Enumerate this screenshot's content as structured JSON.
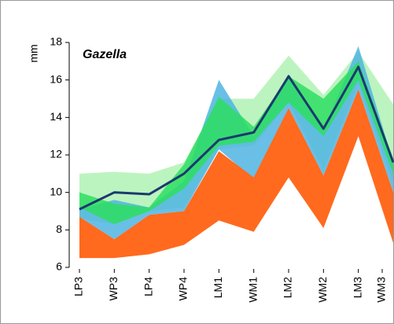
{
  "chart_data": {
    "type": "range-line",
    "title": "Gazella",
    "y_label": "mm",
    "categories": [
      "LP3",
      "WP3",
      "LP4",
      "WP4",
      "LM1",
      "WM1",
      "LM2",
      "WM2",
      "LM3",
      "WM3"
    ],
    "ylim": [
      6,
      18
    ],
    "yticks": [
      6,
      8,
      10,
      12,
      14,
      16,
      18
    ],
    "series": [
      {
        "color": "#b0f2b4",
        "high": [
          11.0,
          11.1,
          11.0,
          11.6,
          15.0,
          15.0,
          17.3,
          15.2,
          17.5,
          14.7
        ],
        "low": [
          8.6,
          8.3,
          9.0,
          9.2,
          12.3,
          12.5,
          14.8,
          11.2,
          15.8,
          10.5
        ]
      },
      {
        "color": "#4fb4e2",
        "high": [
          9.1,
          9.6,
          9.2,
          10.6,
          16.0,
          13.0,
          16.3,
          13.3,
          17.8,
          11.6
        ],
        "low": [
          8.7,
          7.5,
          8.8,
          9.0,
          12.3,
          10.7,
          14.5,
          10.9,
          15.5,
          10.0
        ]
      },
      {
        "color": "#2ede62",
        "high": [
          10.0,
          9.4,
          9.2,
          11.5,
          15.1,
          13.5,
          16.2,
          15.0,
          17.0,
          11.8
        ],
        "low": [
          9.2,
          8.3,
          9.0,
          10.2,
          12.5,
          12.7,
          14.8,
          13.0,
          16.0,
          11.0
        ]
      },
      {
        "color": "#ff6a1e",
        "high": [
          8.7,
          7.5,
          8.8,
          9.0,
          12.2,
          10.8,
          14.5,
          10.9,
          15.5,
          10.0
        ],
        "low": [
          6.5,
          6.5,
          6.7,
          7.2,
          8.5,
          7.9,
          10.8,
          8.1,
          13.0,
          7.3
        ]
      }
    ],
    "line": {
      "color": "#1b3a6e",
      "values": [
        9.1,
        10.0,
        9.9,
        11.0,
        12.8,
        13.2,
        16.2,
        13.4,
        16.7,
        11.6
      ]
    }
  }
}
